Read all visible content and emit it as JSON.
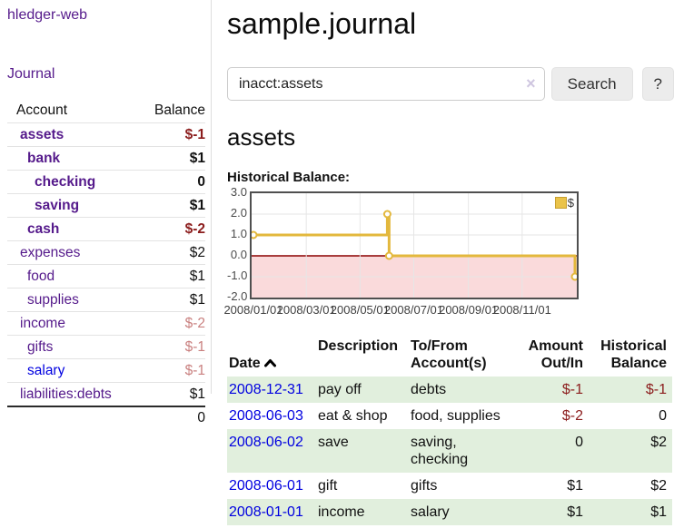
{
  "app": {
    "brand": "hledger-web"
  },
  "sidebar": {
    "journal_label": "Journal",
    "table": {
      "account_header": "Account",
      "balance_header": "Balance",
      "rows": [
        {
          "account": "assets",
          "balance": "$-1",
          "depth": 1,
          "bold": true,
          "balance_style": "neg-strong",
          "link_style": "purple"
        },
        {
          "account": "bank",
          "balance": "$1",
          "depth": 2,
          "bold": true,
          "balance_style": "pos",
          "link_style": "purple"
        },
        {
          "account": "checking",
          "balance": "0",
          "depth": 3,
          "bold": true,
          "balance_style": "pos",
          "link_style": "purple"
        },
        {
          "account": "saving",
          "balance": "$1",
          "depth": 3,
          "bold": true,
          "balance_style": "pos",
          "link_style": "purple"
        },
        {
          "account": "cash",
          "balance": "$-2",
          "depth": 2,
          "bold": true,
          "balance_style": "neg-strong",
          "link_style": "purple"
        },
        {
          "account": "expenses",
          "balance": "$2",
          "depth": 1,
          "bold": false,
          "balance_style": "pos",
          "link_style": "purple"
        },
        {
          "account": "food",
          "balance": "$1",
          "depth": 2,
          "bold": false,
          "balance_style": "pos",
          "link_style": "purple"
        },
        {
          "account": "supplies",
          "balance": "$1",
          "depth": 2,
          "bold": false,
          "balance_style": "pos",
          "link_style": "purple"
        },
        {
          "account": "income",
          "balance": "$-2",
          "depth": 1,
          "bold": false,
          "balance_style": "neg-soft",
          "link_style": "purple"
        },
        {
          "account": "gifts",
          "balance": "$-1",
          "depth": 2,
          "bold": false,
          "balance_style": "neg-soft",
          "link_style": "purple"
        },
        {
          "account": "salary",
          "balance": "$-1",
          "depth": 2,
          "bold": false,
          "balance_style": "neg-soft",
          "link_style": "blue"
        },
        {
          "account": "liabilities:debts",
          "balance": "$1",
          "depth": 1,
          "bold": false,
          "balance_style": "pos",
          "link_style": "purple"
        }
      ],
      "total": "0"
    }
  },
  "main": {
    "title": "sample.journal",
    "search": {
      "value": "inacct:assets",
      "clear_icon": "×",
      "button_label": "Search",
      "help_label": "?"
    },
    "account_heading": "assets",
    "chart_label": "Historical Balance:"
  },
  "chart_data": {
    "type": "line",
    "title": "Historical Balance",
    "style": "steps",
    "series": [
      {
        "name": "$",
        "color": "#e3b83d",
        "points": [
          [
            "2008-01-01",
            1.0
          ],
          [
            "2008-06-01",
            2.0
          ],
          [
            "2008-06-03",
            0.0
          ],
          [
            "2008-12-31",
            -1.0
          ]
        ]
      }
    ],
    "x_range": [
      "2008-01-01",
      "2008-12-31"
    ],
    "x_ticks": [
      "2008/01/01",
      "2008/03/01",
      "2008/05/01",
      "2008/07/01",
      "2008/09/01",
      "2008/11/01"
    ],
    "y_ticks": [
      "3.0",
      "2.0",
      "1.0",
      "0.0",
      "-1.0",
      "-2.0"
    ],
    "ylim": [
      -2.0,
      3.0
    ],
    "grid": true,
    "negative_region_color": "#fadadb",
    "zero_line_color": "#8b0000",
    "legend": {
      "label": "$",
      "position": "top-right"
    }
  },
  "register": {
    "headers": [
      "Date",
      "Description",
      "To/From\nAccount(s)",
      "Amount\nOut/In",
      "Historical\nBalance"
    ],
    "rows": [
      {
        "date": "2008-12-31",
        "description": "pay off",
        "accounts": "debts",
        "amount": "$-1",
        "balance": "$-1"
      },
      {
        "date": "2008-06-03",
        "description": "eat & shop",
        "accounts": "food, supplies",
        "amount": "$-2",
        "balance": "0"
      },
      {
        "date": "2008-06-02",
        "description": "save",
        "accounts": "saving,\nchecking",
        "amount": "0",
        "balance": "$2"
      },
      {
        "date": "2008-06-01",
        "description": "gift",
        "accounts": "gifts",
        "amount": "$1",
        "balance": "$2"
      },
      {
        "date": "2008-01-01",
        "description": "income",
        "accounts": "salary",
        "amount": "$1",
        "balance": "$1"
      }
    ]
  }
}
